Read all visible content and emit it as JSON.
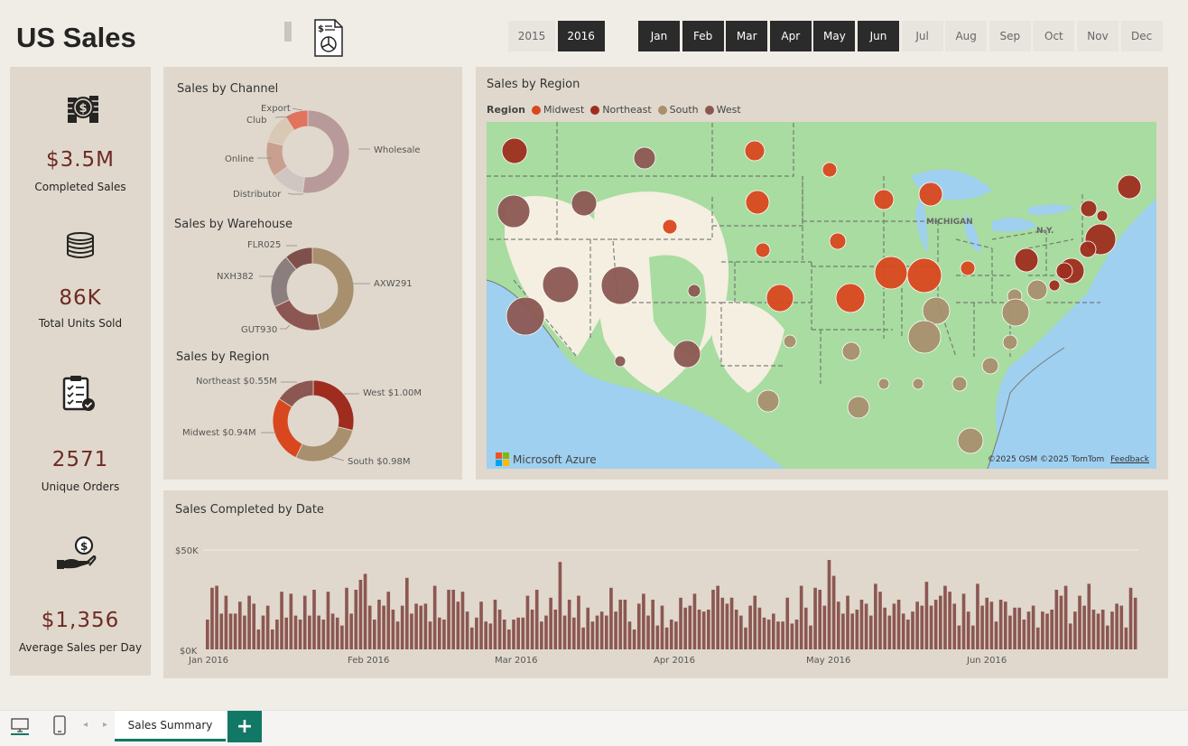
{
  "header": {
    "title": "US Sales",
    "years": [
      {
        "label": "2015",
        "selected": false
      },
      {
        "label": "2016",
        "selected": true
      }
    ],
    "months": [
      {
        "label": "Jan",
        "selected": true
      },
      {
        "label": "Feb",
        "selected": true
      },
      {
        "label": "Mar",
        "selected": true
      },
      {
        "label": "Apr",
        "selected": true
      },
      {
        "label": "May",
        "selected": true
      },
      {
        "label": "Jun",
        "selected": true
      },
      {
        "label": "Jul",
        "selected": false
      },
      {
        "label": "Aug",
        "selected": false
      },
      {
        "label": "Sep",
        "selected": false
      },
      {
        "label": "Oct",
        "selected": false
      },
      {
        "label": "Nov",
        "selected": false
      },
      {
        "label": "Dec",
        "selected": false
      }
    ]
  },
  "kpis": [
    {
      "value": "$3.5M",
      "label": "Completed Sales",
      "icon": "money-stack-icon"
    },
    {
      "value": "86K",
      "label": "Total Units Sold",
      "icon": "coin-stack-icon"
    },
    {
      "value": "2571",
      "label": "Unique Orders",
      "icon": "clipboard-check-icon"
    },
    {
      "value": "$1,356",
      "label": "Average Sales per Day",
      "icon": "hand-coin-icon"
    }
  ],
  "donuts": {
    "channel": {
      "title": "Sales by Channel",
      "labels": [
        "Wholesale",
        "Distributor",
        "Online",
        "Club",
        "Export"
      ],
      "values": [
        0.52,
        0.13,
        0.14,
        0.12,
        0.09
      ],
      "colors": [
        "#b89a9a",
        "#cfc5c2",
        "#c9a090",
        "#d8c8b4",
        "#e2735e"
      ]
    },
    "warehouse": {
      "title": "Sales by Warehouse",
      "labels": [
        "AXW291",
        "GUT930",
        "NXH382",
        "FLR025"
      ],
      "values": [
        0.47,
        0.21,
        0.21,
        0.11
      ],
      "colors": [
        "#a88f6e",
        "#8c5752",
        "#8a7e7e",
        "#7e4f4b"
      ]
    },
    "region": {
      "title": "Sales by Region",
      "labels": [
        "West $1.00M",
        "South $0.98M",
        "Midwest $0.94M",
        "Northeast $0.55M"
      ],
      "values": [
        1.0,
        0.98,
        0.94,
        0.55
      ],
      "colors": [
        "#9e2d1f",
        "#a88f6e",
        "#d9471f",
        "#8c5752"
      ]
    }
  },
  "map": {
    "title": "Sales by Region",
    "legend_title": "Region",
    "legend": [
      {
        "name": "Midwest",
        "color": "#d9471f"
      },
      {
        "name": "Northeast",
        "color": "#9e2d1f"
      },
      {
        "name": "South",
        "color": "#a88f6e"
      },
      {
        "name": "West",
        "color": "#8c5752"
      }
    ],
    "place_labels": {
      "michigan": "MICHIGAN",
      "ny": "N.Y."
    },
    "brand": "Microsoft Azure",
    "attribution": "©2025 OSM  ©2025 TomTom",
    "feedback": "Feedback"
  },
  "timeline": {
    "title": "Sales Completed by Date",
    "bar_color": "#8c5752",
    "gridline_color": "#f0ece6"
  },
  "chart_data": {
    "type": "bar",
    "title": "Sales Completed by Date",
    "y_ticks": [
      "$50K",
      "$0K"
    ],
    "ylim": [
      0,
      50000
    ],
    "x_ticks": [
      "Jan 2016",
      "Feb 2016",
      "Mar 2016",
      "Apr 2016",
      "May 2016",
      "Jun 2016"
    ],
    "values": [
      15000,
      31000,
      32000,
      18000,
      27000,
      18000,
      18000,
      24000,
      17000,
      27000,
      23000,
      10000,
      17000,
      22000,
      10000,
      15000,
      29000,
      16000,
      28000,
      17000,
      15000,
      27000,
      17000,
      30000,
      17000,
      15000,
      29000,
      18000,
      16000,
      12000,
      31000,
      18000,
      30000,
      35000,
      38000,
      22000,
      15000,
      25000,
      22000,
      29000,
      20000,
      14000,
      22000,
      36000,
      18000,
      23000,
      22000,
      23000,
      14000,
      32000,
      16000,
      15000,
      30000,
      30000,
      24000,
      29000,
      19000,
      11000,
      16000,
      24000,
      14000,
      13000,
      25000,
      20000,
      15000,
      10000,
      15000,
      16000,
      16000,
      27000,
      20000,
      30000,
      14000,
      17000,
      26000,
      20000,
      44000,
      17000,
      25000,
      16000,
      27000,
      11000,
      21000,
      14000,
      17000,
      19000,
      17000,
      31000,
      19000,
      25000,
      25000,
      14000,
      10000,
      23000,
      28000,
      17000,
      25000,
      12000,
      22000,
      11000,
      15000,
      14000,
      26000,
      21000,
      22000,
      28000,
      20000,
      19000,
      20000,
      30000,
      32000,
      26000,
      23000,
      26000,
      20000,
      17000,
      11000,
      22000,
      27000,
      21000,
      16000,
      15000,
      18000,
      14000,
      14000,
      26000,
      13000,
      15000,
      32000,
      21000,
      12000,
      31000,
      30000,
      22000,
      45000,
      37000,
      24000,
      18000,
      27000,
      18000,
      20000,
      25000,
      23000,
      17000,
      33000,
      29000,
      21000,
      17000,
      23000,
      25000,
      18000,
      15000,
      19000,
      24000,
      22000,
      34000,
      22000,
      25000,
      27000,
      32000,
      29000,
      23000,
      12000,
      28000,
      19000,
      12000,
      33000,
      22000,
      26000,
      24000,
      14000,
      25000,
      24000,
      17000,
      21000,
      21000,
      15000,
      19000,
      22000,
      11000,
      19000,
      18000,
      20000,
      30000,
      27000,
      32000,
      13000,
      19000,
      27000,
      22000,
      33000,
      20000,
      18000,
      20000,
      12000,
      19000,
      23000,
      22000,
      11000,
      31000,
      26000
    ]
  },
  "tabs": {
    "active": "Sales Summary",
    "add": "+"
  }
}
